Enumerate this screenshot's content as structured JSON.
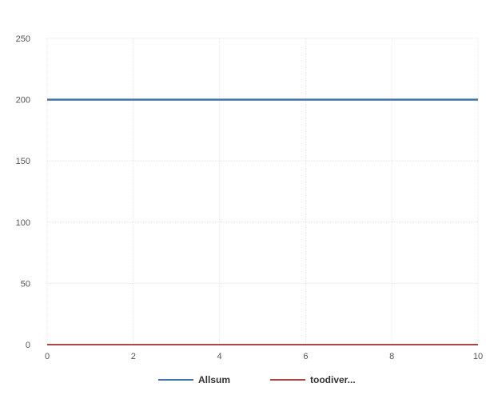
{
  "chart_data": {
    "type": "line",
    "title": "",
    "xlabel": "",
    "ylabel": "",
    "xlim": [
      0,
      10
    ],
    "ylim": [
      0,
      250
    ],
    "x_ticks": [
      0,
      2,
      4,
      6,
      8,
      10
    ],
    "y_ticks": [
      0,
      50,
      100,
      150,
      200,
      250
    ],
    "grid": true,
    "legend_position": "bottom",
    "x": [
      0,
      10
    ],
    "series": [
      {
        "name": "Allsum",
        "values": [
          200,
          200
        ],
        "color": "#4572a7"
      },
      {
        "name": "toodiver...",
        "values": [
          0,
          0
        ],
        "color": "#aa4643"
      }
    ]
  }
}
